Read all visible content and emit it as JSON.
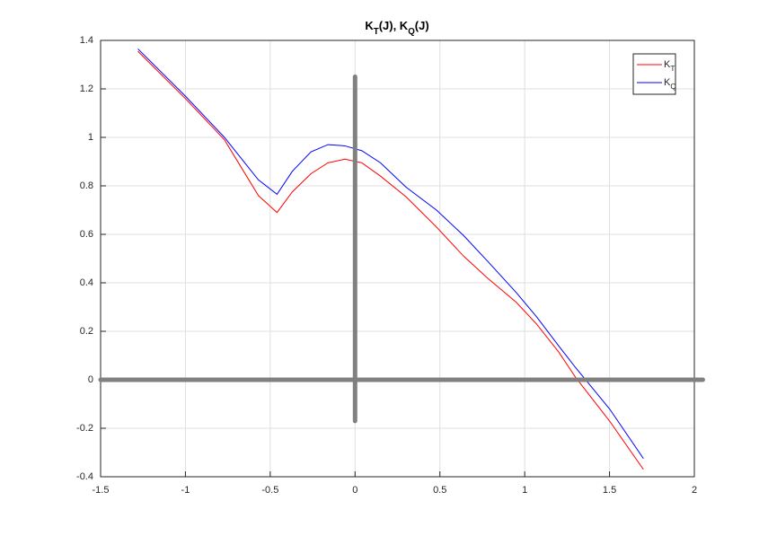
{
  "chart_data": {
    "type": "line",
    "title": "K_T(J), K_Q(J)",
    "interpreter": "tex",
    "x": [
      -1.28,
      -1.0,
      -0.77,
      -0.57,
      -0.46,
      -0.37,
      -0.26,
      -0.16,
      -0.06,
      0.04,
      0.15,
      0.3,
      0.48,
      0.64,
      0.78,
      0.95,
      1.07,
      1.2,
      1.3,
      1.5,
      1.7
    ],
    "series": [
      {
        "name": "K_T",
        "color": "#ff0000",
        "values": [
          1.355,
          1.16,
          0.99,
          0.76,
          0.69,
          0.775,
          0.85,
          0.895,
          0.91,
          0.895,
          0.84,
          0.755,
          0.63,
          0.51,
          0.42,
          0.32,
          0.23,
          0.115,
          0.01,
          -0.17,
          -0.37
        ]
      },
      {
        "name": "K_Q",
        "color": "#0000ff",
        "values": [
          1.365,
          1.17,
          1.0,
          0.825,
          0.765,
          0.86,
          0.94,
          0.97,
          0.965,
          0.945,
          0.895,
          0.795,
          0.7,
          0.595,
          0.49,
          0.36,
          0.26,
          0.14,
          0.05,
          -0.12,
          -0.325
        ]
      }
    ],
    "reference_lines": [
      {
        "color": "#808080",
        "x": [
          -1.5,
          2.05
        ],
        "y": [
          0,
          0
        ]
      },
      {
        "color": "#808080",
        "x": [
          0,
          0
        ],
        "y": [
          -0.17,
          1.25
        ]
      }
    ],
    "xlim": [
      -1.5,
      2
    ],
    "ylim": [
      -0.4,
      1.4
    ],
    "xticks": [
      -1.5,
      -1,
      -0.5,
      0,
      0.5,
      1,
      1.5,
      2
    ],
    "yticks": [
      -0.4,
      -0.2,
      0,
      0.2,
      0.4,
      0.6,
      0.8,
      1,
      1.2,
      1.4
    ],
    "grid": true,
    "legend": "northeast"
  }
}
